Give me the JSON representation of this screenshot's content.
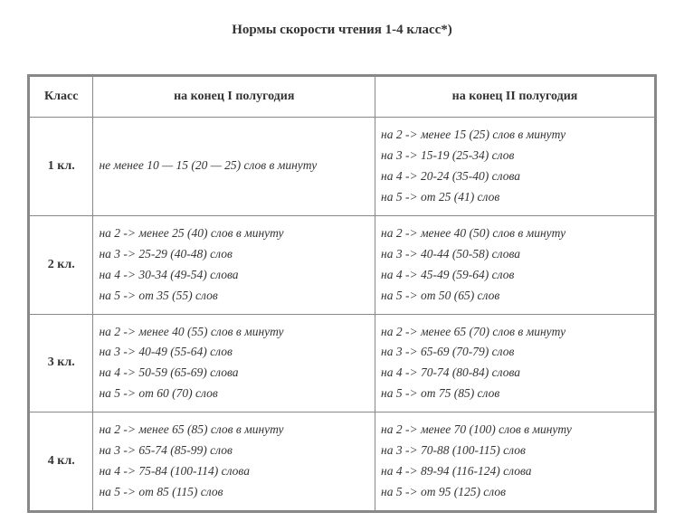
{
  "title": "Нормы скорости чтения 1-4 класс*)",
  "headers": {
    "grade": "Класс",
    "h1": "на конец I полугодия",
    "h2": "на конец II полугодия"
  },
  "rows": [
    {
      "grade": "1 кл.",
      "h1": [
        "не менее 10 — 15 (20 — 25) слов в минуту"
      ],
      "h2": [
        " на 2 ->    менее 15 (25) слов в минуту",
        "на 3 ->    15-19  (25-34) слов",
        "на 4 ->   20-24  (35-40) слова",
        "на 5 ->   от 25  (41) слов"
      ]
    },
    {
      "grade": "2 кл.",
      "h1": [
        " на 2 ->    менее 25 (40) слов в минуту",
        "на 3 ->   25-29  (40-48) слов",
        "на 4 ->   30-34  (49-54) слова",
        "на 5 ->   от 35  (55) слов"
      ],
      "h2": [
        " на 2 ->    менее 40 (50) слов в минуту",
        "на 3 ->   40-44  (50-58) слова",
        "на 4 ->    45-49 (59-64) слов",
        "на 5 ->   от 50  (65) слов"
      ]
    },
    {
      "grade": "3 кл.",
      "h1": [
        " на 2 ->    менее 40 (55) слов в минуту",
        "на 3 ->   40-49  (55-64) слов",
        "на 4 ->   50-59  (65-69) слова",
        "на 5 ->   от 60  (70) слов"
      ],
      "h2": [
        " на 2 ->   менее 65 (70) слов в минуту",
        "на 3 ->   65-69  (70-79) слов",
        "на 4 ->   70-74  (80-84) слова",
        "на 5 ->   от 75  (85) слов"
      ]
    },
    {
      "grade": "4 кл.",
      "h1": [
        " на 2 ->   менее 65 (85) слов в минуту",
        "на 3 ->   65-74  (85-99) слов",
        "на 4 ->   75-84  (100-114) слова",
        "на 5 ->   от 85  (115) слов"
      ],
      "h2": [
        " на 2 ->   менее 70 (100) слов в минуту",
        "на 3 ->   70-88  (100-115) слов",
        "на 4 ->   89-94  (116-124) слова",
        "на 5 ->   от 95  (125) слов"
      ]
    }
  ]
}
